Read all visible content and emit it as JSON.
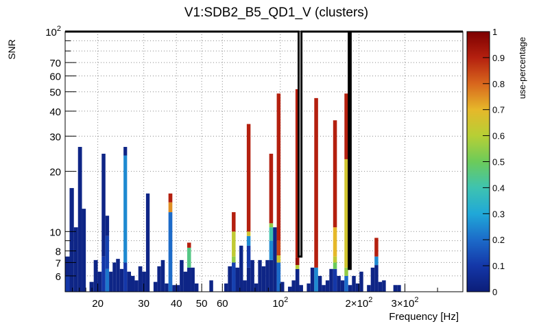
{
  "chart_data": {
    "type": "heatmap",
    "title": "V1:SDB2_B5_QD1_V (clusters)",
    "xlabel": "Frequency [Hz]",
    "ylabel": "SNR",
    "zlabel": "use-percentage",
    "x_scale": "log",
    "y_scale": "log",
    "xlim": [
      15,
      500
    ],
    "ylim": [
      5,
      100
    ],
    "zlim": [
      0,
      1
    ],
    "grid": true,
    "x_ticks": [
      {
        "value": 20,
        "label": "20"
      },
      {
        "value": 30,
        "label": "30"
      },
      {
        "value": 40,
        "label": "40"
      },
      {
        "value": 50,
        "label": "50"
      },
      {
        "value": 60,
        "label": "60"
      },
      {
        "value": 100,
        "label": "10",
        "sup": "2"
      },
      {
        "value": 200,
        "label": "2×10",
        "sup": "2"
      },
      {
        "value": 300,
        "label": "3×10",
        "sup": "2"
      }
    ],
    "y_ticks": [
      {
        "value": 6,
        "label": "6"
      },
      {
        "value": 7,
        "label": "7"
      },
      {
        "value": 8,
        "label": "8"
      },
      {
        "value": 10,
        "label": "10"
      },
      {
        "value": 20,
        "label": "20"
      },
      {
        "value": 30,
        "label": "30"
      },
      {
        "value": 40,
        "label": "40"
      },
      {
        "value": 50,
        "label": "50"
      },
      {
        "value": 60,
        "label": "60"
      },
      {
        "value": 70,
        "label": "70"
      },
      {
        "value": 100,
        "label": "10",
        "sup": "2"
      }
    ],
    "z_ticks": [
      {
        "value": 0,
        "label": "0"
      },
      {
        "value": 0.1,
        "label": "0.1"
      },
      {
        "value": 0.2,
        "label": "0.2"
      },
      {
        "value": 0.3,
        "label": "0.3"
      },
      {
        "value": 0.4,
        "label": "0.4"
      },
      {
        "value": 0.5,
        "label": "0.5"
      },
      {
        "value": 0.6,
        "label": "0.6"
      },
      {
        "value": 0.7,
        "label": "0.7"
      },
      {
        "value": 0.8,
        "label": "0.8"
      },
      {
        "value": 0.9,
        "label": "0.9"
      },
      {
        "value": 1,
        "label": "1"
      }
    ],
    "columns": [
      {
        "f0": 15.0,
        "f1": 15.6,
        "snr": 7.5,
        "u": 0.03,
        "seg": [
          [
            6.0,
            0.1
          ]
        ]
      },
      {
        "f0": 15.6,
        "f1": 16.2,
        "snr": 16.5,
        "u": 0.03
      },
      {
        "f0": 16.2,
        "f1": 16.8,
        "snr": 10.5,
        "u": 0.03
      },
      {
        "f0": 16.8,
        "f1": 17.4,
        "snr": 26.5,
        "u": 0.03
      },
      {
        "f0": 17.4,
        "f1": 18.0,
        "snr": 13.0,
        "u": 0.03
      },
      {
        "f0": 18.6,
        "f1": 19.3,
        "snr": 5.6,
        "u": 0.03
      },
      {
        "f0": 19.3,
        "f1": 20.0,
        "snr": 7.2,
        "u": 0.03
      },
      {
        "f0": 20.0,
        "f1": 20.7,
        "snr": 6.3,
        "u": 0.03
      },
      {
        "f0": 20.7,
        "f1": 21.4,
        "snr": 24.5,
        "u": 0.03,
        "seg": [
          [
            7.5,
            0.1
          ]
        ]
      },
      {
        "f0": 21.4,
        "f1": 22.1,
        "snr": 12.0,
        "u": 0.03,
        "seg": [
          [
            6.5,
            0.22
          ],
          [
            9.5,
            0.12
          ]
        ]
      },
      {
        "f0": 22.1,
        "f1": 22.8,
        "snr": 6.3,
        "u": 0.03
      },
      {
        "f0": 22.8,
        "f1": 23.5,
        "snr": 7.0,
        "u": 0.03
      },
      {
        "f0": 23.5,
        "f1": 24.3,
        "snr": 7.3,
        "u": 0.03
      },
      {
        "f0": 24.3,
        "f1": 25.1,
        "snr": 6.5,
        "u": 0.03
      },
      {
        "f0": 25.1,
        "f1": 25.9,
        "snr": 26.5,
        "u": 0.03,
        "seg": [
          [
            7.0,
            0.1
          ],
          [
            24.0,
            0.25
          ]
        ]
      },
      {
        "f0": 25.9,
        "f1": 26.8,
        "snr": 6.3,
        "u": 0.03
      },
      {
        "f0": 26.8,
        "f1": 27.7,
        "snr": 6.0,
        "u": 0.03
      },
      {
        "f0": 27.7,
        "f1": 28.6,
        "snr": 5.7,
        "u": 0.03
      },
      {
        "f0": 28.6,
        "f1": 29.6,
        "snr": 6.7,
        "u": 0.03
      },
      {
        "f0": 29.6,
        "f1": 30.6,
        "snr": 6.3,
        "u": 0.03
      },
      {
        "f0": 30.6,
        "f1": 31.6,
        "snr": 15.5,
        "u": 0.03
      },
      {
        "f0": 32.7,
        "f1": 33.8,
        "snr": 5.6,
        "u": 0.03
      },
      {
        "f0": 33.8,
        "f1": 34.9,
        "snr": 6.7,
        "u": 0.03
      },
      {
        "f0": 34.9,
        "f1": 36.1,
        "snr": 7.2,
        "u": 0.03
      },
      {
        "f0": 36.1,
        "f1": 37.3,
        "snr": 5.5,
        "u": 0.03
      },
      {
        "f0": 37.3,
        "f1": 38.6,
        "snr": 15.5,
        "u": 0.9,
        "seg": [
          [
            12.5,
            0.2
          ],
          [
            14.0,
            0.75
          ]
        ]
      },
      {
        "f0": 38.6,
        "f1": 39.9,
        "snr": 5.4,
        "u": 0.03
      },
      {
        "f0": 39.9,
        "f1": 41.2,
        "snr": 5.4,
        "u": 0.03
      },
      {
        "f0": 41.2,
        "f1": 42.6,
        "snr": 7.2,
        "u": 0.03
      },
      {
        "f0": 42.6,
        "f1": 44.0,
        "snr": 6.3,
        "u": 0.03
      },
      {
        "f0": 44.0,
        "f1": 45.5,
        "snr": 8.8,
        "u": 0.9,
        "seg": [
          [
            6.6,
            0.03
          ],
          [
            8.3,
            0.45
          ]
        ]
      },
      {
        "f0": 45.5,
        "f1": 47.0,
        "snr": 6.6,
        "u": 0.03
      },
      {
        "f0": 47.0,
        "f1": 48.6,
        "snr": 5.5,
        "u": 0.03
      },
      {
        "f0": 48.6,
        "f1": 50.2,
        "snr": 5.0,
        "u": 0.03
      },
      {
        "f0": 53.5,
        "f1": 55.3,
        "snr": 5.7,
        "u": 0.03
      },
      {
        "f0": 55.3,
        "f1": 57.2,
        "snr": 5.0,
        "u": 0.03
      },
      {
        "f0": 61.0,
        "f1": 63.0,
        "snr": 5.5,
        "u": 0.03
      },
      {
        "f0": 63.0,
        "f1": 65.2,
        "snr": 6.7,
        "u": 0.03
      },
      {
        "f0": 65.2,
        "f1": 67.4,
        "snr": 12.5,
        "u": 0.9,
        "seg": [
          [
            7.0,
            0.12
          ],
          [
            7.5,
            0.55
          ],
          [
            10.0,
            0.62
          ]
        ]
      },
      {
        "f0": 67.4,
        "f1": 69.7,
        "snr": 6.6,
        "u": 0.03
      },
      {
        "f0": 69.7,
        "f1": 72.0,
        "snr": 8.5,
        "u": 0.03
      },
      {
        "f0": 72.0,
        "f1": 74.4,
        "snr": 5.7,
        "u": 0.03
      },
      {
        "f0": 74.4,
        "f1": 76.9,
        "snr": 34.5,
        "u": 0.9,
        "seg": [
          [
            6.6,
            0.03
          ],
          [
            8.5,
            0.1
          ],
          [
            9.5,
            0.25
          ],
          [
            10.0,
            0.65
          ]
        ]
      },
      {
        "f0": 76.9,
        "f1": 79.5,
        "snr": 7.2,
        "u": 0.03
      },
      {
        "f0": 79.5,
        "f1": 82.2,
        "snr": 5.5,
        "u": 0.03
      },
      {
        "f0": 82.2,
        "f1": 84.9,
        "snr": 7.2,
        "u": 0.03
      },
      {
        "f0": 84.9,
        "f1": 87.8,
        "snr": 6.7,
        "u": 0.03
      },
      {
        "f0": 87.8,
        "f1": 90.7,
        "snr": 7.2,
        "u": 0.03
      },
      {
        "f0": 90.7,
        "f1": 93.8,
        "snr": 24.5,
        "u": 0.9,
        "seg": [
          [
            7.2,
            0.03
          ],
          [
            9.0,
            0.25
          ],
          [
            10.5,
            0.4
          ],
          [
            11.0,
            0.55
          ]
        ]
      },
      {
        "f0": 93.8,
        "f1": 96.9,
        "snr": 10.5,
        "u": 0.03
      },
      {
        "f0": 96.9,
        "f1": 100.2,
        "snr": 49.0,
        "u": 0.9,
        "seg": [
          [
            7.0,
            0.2
          ],
          [
            7.6,
            0.65
          ],
          [
            9.0,
            0.85
          ]
        ]
      },
      {
        "f0": 100.2,
        "f1": 103.5,
        "snr": 5.6,
        "u": 0.03
      },
      {
        "f0": 107.0,
        "f1": 110.6,
        "snr": 5.3,
        "u": 0.03
      },
      {
        "f0": 110.6,
        "f1": 114.3,
        "snr": 5.7,
        "u": 0.03
      },
      {
        "f0": 114.3,
        "f1": 118.2,
        "snr": 51.5,
        "u": 0.9,
        "seg": [
          [
            6.5,
            0.03
          ],
          [
            6.8,
            0.6
          ],
          [
            7.4,
            0.95
          ]
        ]
      },
      {
        "f0": 118.2,
        "f1": 122.2,
        "snr": 5.4,
        "u": 0.03
      },
      {
        "f0": 126.3,
        "f1": 130.5,
        "snr": 5.5,
        "u": 0.03
      },
      {
        "f0": 130.5,
        "f1": 134.9,
        "snr": 6.6,
        "u": 0.03
      },
      {
        "f0": 134.9,
        "f1": 139.5,
        "snr": 46.5,
        "u": 0.9,
        "seg": [
          [
            6.6,
            0.25
          ]
        ]
      },
      {
        "f0": 139.5,
        "f1": 144.2,
        "snr": 6.0,
        "u": 0.03
      },
      {
        "f0": 144.2,
        "f1": 149.1,
        "snr": 5.4,
        "u": 0.03
      },
      {
        "f0": 149.1,
        "f1": 154.1,
        "snr": 5.7,
        "u": 0.03
      },
      {
        "f0": 154.1,
        "f1": 159.3,
        "snr": 6.5,
        "u": 0.03
      },
      {
        "f0": 159.3,
        "f1": 164.7,
        "snr": 36.0,
        "u": 0.9,
        "seg": [
          [
            6.5,
            0.1
          ],
          [
            7.0,
            0.5
          ],
          [
            7.5,
            0.62
          ],
          [
            10.5,
            0.7
          ]
        ]
      },
      {
        "f0": 164.7,
        "f1": 170.3,
        "snr": 6.0,
        "u": 0.03
      },
      {
        "f0": 170.3,
        "f1": 176.0,
        "snr": 5.7,
        "u": 0.03
      },
      {
        "f0": 176.0,
        "f1": 181.9,
        "snr": 49.0,
        "u": 0.9,
        "seg": [
          [
            6.0,
            0.2
          ],
          [
            6.6,
            0.55
          ],
          [
            23.0,
            0.65
          ]
        ]
      },
      {
        "f0": 181.9,
        "f1": 188.1,
        "snr": 5.4,
        "u": 0.03
      },
      {
        "f0": 188.1,
        "f1": 194.4,
        "snr": 6.0,
        "u": 0.03
      },
      {
        "f0": 194.4,
        "f1": 201.0,
        "snr": 5.5,
        "u": 0.03
      },
      {
        "f0": 201.0,
        "f1": 207.7,
        "snr": 6.3,
        "u": 0.03
      },
      {
        "f0": 214.7,
        "f1": 222.0,
        "snr": 5.4,
        "u": 0.03
      },
      {
        "f0": 222.0,
        "f1": 229.5,
        "snr": 6.6,
        "u": 0.03
      },
      {
        "f0": 229.5,
        "f1": 237.2,
        "snr": 9.3,
        "u": 0.9,
        "seg": [
          [
            6.8,
            0.03
          ],
          [
            7.5,
            0.25
          ]
        ]
      },
      {
        "f0": 237.2,
        "f1": 245.2,
        "snr": 5.6,
        "u": 0.03
      },
      {
        "f0": 245.2,
        "f1": 253.5,
        "snr": 5.7,
        "u": 0.03
      },
      {
        "f0": 270.9,
        "f1": 280.1,
        "snr": 5.4,
        "u": 0.03
      },
      {
        "f0": 280.1,
        "f1": 289.6,
        "snr": 5.4,
        "u": 0.03
      }
    ],
    "lines_outline": [
      [
        [
          15.0,
          100
        ],
        [
          117.5,
          100
        ],
        [
          117.5,
          7.5
        ],
        [
          120.5,
          7.5
        ],
        [
          120.5,
          100
        ],
        [
          182.8,
          100
        ],
        [
          182.8,
          6.5
        ],
        [
          186.0,
          6.5
        ],
        [
          186.0,
          100
        ],
        [
          500,
          100
        ]
      ]
    ]
  }
}
